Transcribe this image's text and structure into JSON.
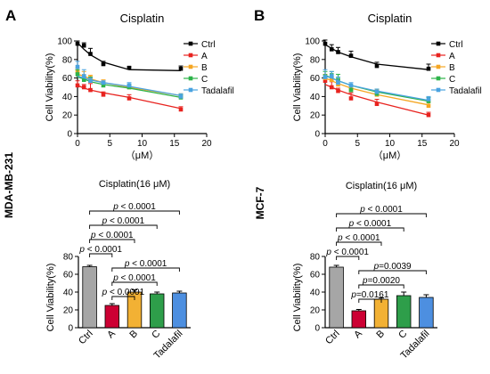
{
  "panel_letters": [
    "A",
    "B"
  ],
  "row_labels": [
    "MDA-MB-231",
    "MCF-7"
  ],
  "series_colors": {
    "Ctrl": "#000000",
    "A": "#e8231f",
    "B": "#f5a623",
    "C": "#2db34a",
    "Tadalafil": "#4aa3e0"
  },
  "bar_colors": [
    "#a6a6a6",
    "#cc0033",
    "#f2b134",
    "#2e9e4a",
    "#4d8fe0"
  ],
  "chart_data": [
    {
      "id": "A-line",
      "type": "line",
      "title": "Cisplatin",
      "xlabel": "（μM）",
      "ylabel": "Cell Viability(%)",
      "xlim": [
        0,
        20
      ],
      "ylim": [
        0,
        100
      ],
      "xticks": [
        0,
        5,
        10,
        15,
        20
      ],
      "yticks": [
        0,
        20,
        40,
        60,
        80,
        100
      ],
      "x": [
        0,
        1,
        2,
        4,
        8,
        16
      ],
      "series": [
        {
          "name": "Ctrl",
          "values": [
            97,
            95,
            86,
            75,
            71,
            70
          ],
          "err": [
            3,
            3,
            6,
            3,
            1,
            3
          ],
          "fit": [
            98,
            91,
            85,
            77,
            69,
            68
          ]
        },
        {
          "name": "A",
          "values": [
            52,
            50,
            47,
            42,
            38,
            26
          ],
          "err": [
            5,
            3,
            7,
            3,
            4,
            3
          ],
          "fit": [
            52,
            49,
            47,
            44,
            39,
            27
          ]
        },
        {
          "name": "B",
          "values": [
            67,
            62,
            60,
            55,
            50,
            40
          ],
          "err": [
            4,
            5,
            3,
            3,
            2,
            3
          ],
          "fit": [
            64,
            62,
            59,
            55,
            50,
            41
          ]
        },
        {
          "name": "C",
          "values": [
            64,
            58,
            57,
            52,
            50,
            39
          ],
          "err": [
            5,
            3,
            4,
            3,
            3,
            3
          ],
          "fit": [
            61,
            59,
            56,
            53,
            49,
            39
          ]
        },
        {
          "name": "Tadalafil",
          "values": [
            72,
            62,
            57,
            55,
            52,
            40
          ],
          "err": [
            6,
            7,
            3,
            2,
            3,
            3
          ],
          "fit": [
            62,
            60,
            58,
            55,
            51,
            41
          ]
        }
      ]
    },
    {
      "id": "B-line",
      "type": "line",
      "title": "Cisplatin",
      "xlabel": "（μM）",
      "ylabel": "Cell Viability(%)",
      "xlim": [
        0,
        20
      ],
      "ylim": [
        0,
        100
      ],
      "xticks": [
        0,
        5,
        10,
        15,
        20
      ],
      "yticks": [
        0,
        20,
        40,
        60,
        80,
        100
      ],
      "x": [
        0,
        1,
        2,
        4,
        8,
        16
      ],
      "series": [
        {
          "name": "Ctrl",
          "values": [
            97,
            91,
            88,
            84,
            73,
            70
          ],
          "err": [
            4,
            5,
            5,
            5,
            4,
            5
          ],
          "fit": [
            96,
            92,
            88,
            83,
            75,
            69
          ]
        },
        {
          "name": "A",
          "values": [
            57,
            50,
            46,
            38,
            32,
            20
          ],
          "err": [
            5,
            6,
            3,
            6,
            5,
            3
          ],
          "fit": [
            53,
            50,
            47,
            42,
            34,
            20
          ]
        },
        {
          "name": "B",
          "values": [
            60,
            58,
            53,
            47,
            42,
            30
          ],
          "err": [
            4,
            3,
            3,
            3,
            5,
            4
          ],
          "fit": [
            60,
            57,
            54,
            49,
            42,
            31
          ]
        },
        {
          "name": "C",
          "values": [
            62,
            63,
            58,
            47,
            43,
            35
          ],
          "err": [
            5,
            4,
            6,
            5,
            5,
            4
          ],
          "fit": [
            63,
            60,
            57,
            52,
            45,
            35
          ]
        },
        {
          "name": "Tadalafil",
          "values": [
            61,
            62,
            55,
            52,
            45,
            37
          ],
          "err": [
            8,
            5,
            6,
            3,
            3,
            3
          ],
          "fit": [
            62,
            60,
            57,
            52,
            46,
            36
          ]
        }
      ]
    },
    {
      "id": "A-bar",
      "type": "bar",
      "title": "Cisplatin(16 μM)",
      "ylabel": "Cell Viability(%)",
      "ylim": [
        0,
        80
      ],
      "yticks": [
        0,
        20,
        40,
        60,
        80
      ],
      "categories": [
        "Ctrl",
        "A",
        "B",
        "C",
        "Tadalafil"
      ],
      "values": [
        68.5,
        25,
        40,
        38,
        39
      ],
      "err": [
        1.5,
        2,
        2.5,
        2,
        2
      ],
      "comparisons": [
        {
          "from": 0,
          "to": 4,
          "text": "p < 0.0001"
        },
        {
          "from": 0,
          "to": 3,
          "text": "p < 0.0001"
        },
        {
          "from": 0,
          "to": 2,
          "text": "p < 0.0001"
        },
        {
          "from": 0,
          "to": 1,
          "text": "p < 0.0001"
        },
        {
          "from": 1,
          "to": 4,
          "text": "p < 0.0001"
        },
        {
          "from": 1,
          "to": 3,
          "text": "p < 0.0001"
        },
        {
          "from": 1,
          "to": 2,
          "text": "p < 0.0001"
        }
      ]
    },
    {
      "id": "B-bar",
      "type": "bar",
      "title": "Cisplatin(16 μM)",
      "ylabel": "Cell Viability(%)",
      "ylim": [
        0,
        80
      ],
      "yticks": [
        0,
        20,
        40,
        60,
        80
      ],
      "categories": [
        "Ctrl",
        "A",
        "B",
        "C",
        "Tadalafil"
      ],
      "values": [
        68,
        19,
        32,
        36,
        34
      ],
      "err": [
        2,
        1.5,
        1.5,
        4,
        3
      ],
      "comparisons": [
        {
          "from": 0,
          "to": 4,
          "text": "p < 0.0001"
        },
        {
          "from": 0,
          "to": 3,
          "text": "p < 0.0001"
        },
        {
          "from": 0,
          "to": 2,
          "text": "p < 0.0001"
        },
        {
          "from": 0,
          "to": 1,
          "text": "p < 0.0001"
        },
        {
          "from": 1,
          "to": 4,
          "text": "p=0.0039"
        },
        {
          "from": 1,
          "to": 3,
          "text": "p=0.0020"
        },
        {
          "from": 1,
          "to": 2,
          "text": "p=0.0161"
        }
      ]
    }
  ]
}
